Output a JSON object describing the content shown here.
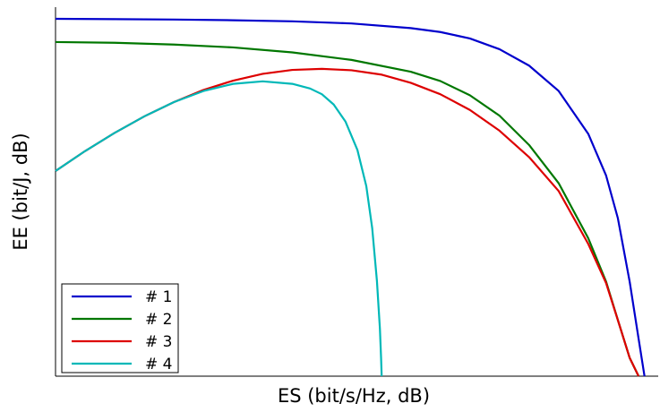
{
  "chart_data": {
    "type": "line",
    "xlabel": "ES (bit/s/Hz, dB)",
    "ylabel": "EE (bit/J, dB)",
    "xlim": [
      0,
      100
    ],
    "ylim": [
      0,
      100
    ],
    "grid": false,
    "legend_position": "bottom-left",
    "x_ticks": [],
    "y_ticks": [],
    "series": [
      {
        "name": "# 1",
        "color": "#0000cc",
        "x": [
          0,
          10,
          20,
          30,
          40,
          50,
          60,
          65,
          70,
          75,
          80,
          85,
          90,
          93,
          95,
          97,
          98.5,
          99.5
        ],
        "y": [
          100,
          99.9,
          99.8,
          99.6,
          99.3,
          98.7,
          97.4,
          96.3,
          94.5,
          91.5,
          86.9,
          79.8,
          67.8,
          56.2,
          44.2,
          26.4,
          10.5,
          0
        ]
      },
      {
        "name": "# 2",
        "color": "#007700",
        "x": [
          0,
          10,
          20,
          30,
          40,
          50,
          60,
          65,
          70,
          75,
          80,
          85,
          90,
          93,
          95,
          97,
          98.5
        ],
        "y": [
          93.5,
          93.3,
          92.8,
          92.0,
          90.6,
          88.5,
          85.2,
          82.6,
          78.6,
          72.9,
          64.7,
          54.0,
          38.6,
          26.5,
          15.7,
          5.1,
          0
        ]
      },
      {
        "name": "# 3",
        "color": "#dd0000",
        "x": [
          0,
          5,
          10,
          15,
          20,
          25,
          30,
          35,
          40,
          45,
          50,
          55,
          60,
          65,
          70,
          75,
          80,
          85,
          90,
          93,
          95,
          97,
          98.5
        ],
        "y": [
          57.4,
          63.0,
          68.1,
          72.7,
          76.7,
          80.1,
          82.7,
          84.6,
          85.7,
          86.0,
          85.6,
          84.4,
          82.1,
          78.9,
          74.5,
          68.7,
          61.3,
          51.8,
          37.0,
          26.1,
          15.7,
          5.1,
          0
        ]
      },
      {
        "name": "# 4",
        "color": "#00b8b8",
        "x": [
          0,
          5,
          10,
          15,
          20,
          25,
          30,
          35,
          40,
          43,
          45,
          47,
          49,
          51,
          52.5,
          53.5,
          54.3,
          54.8,
          55.0,
          55.1
        ],
        "y": [
          57.4,
          63.0,
          68.1,
          72.7,
          76.7,
          79.8,
          81.8,
          82.5,
          81.8,
          80.5,
          78.9,
          76.0,
          71.2,
          63.3,
          53.2,
          41.4,
          26.6,
          13.3,
          5.0,
          0
        ]
      }
    ]
  }
}
